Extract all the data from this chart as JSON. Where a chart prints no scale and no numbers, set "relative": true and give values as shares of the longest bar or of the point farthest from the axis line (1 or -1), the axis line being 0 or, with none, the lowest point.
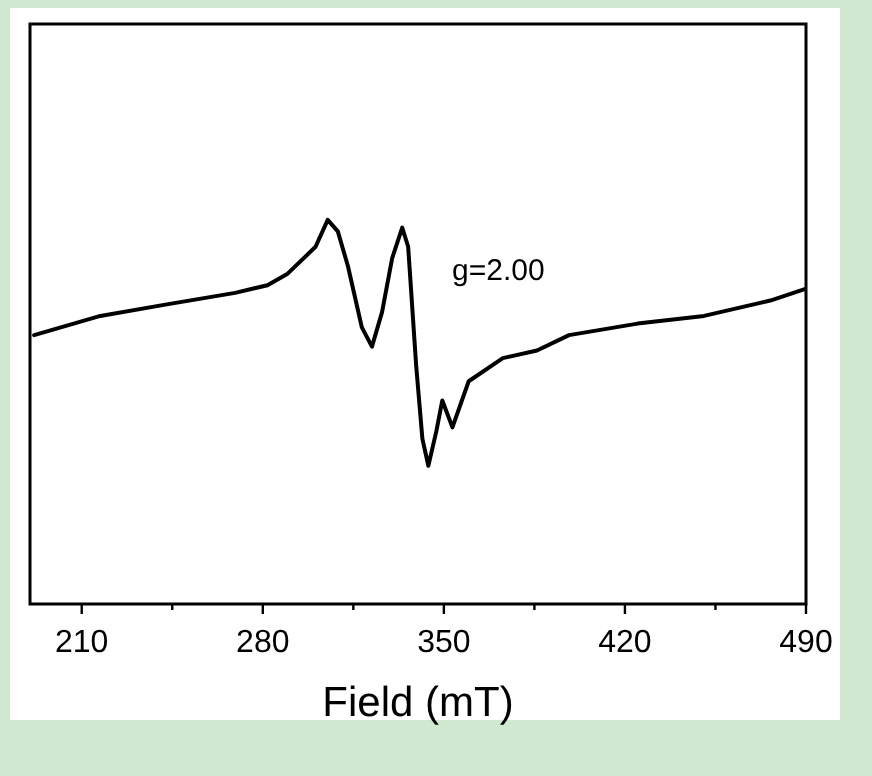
{
  "chart_data": {
    "type": "line",
    "xlabel": "Field (mT)",
    "relative": true,
    "tick_labels": "x",
    "grid": false,
    "marker": "none",
    "line_style": "solid",
    "xlim": [
      190,
      490
    ],
    "xticks": [
      210,
      {
        "value": 245,
        "label": null
      },
      280,
      {
        "value": 315,
        "label": null
      },
      350,
      {
        "value": 385,
        "label": null
      },
      420,
      {
        "value": 455,
        "label": null
      },
      490
    ],
    "annotations": [
      "g=2.00"
    ],
    "series": [
      {
        "color": "#000000",
        "x": [
          191.6,
          217.2,
          242.9,
          269.3,
          281.8,
          289.6,
          300.4,
          305.1,
          309.0,
          312.9,
          318.3,
          322.2,
          326.1,
          330.0,
          333.9,
          336.2,
          339.3,
          341.7,
          344.0,
          347.1,
          349.4,
          353.3,
          359.6,
          372.8,
          386.0,
          398.4,
          424.9,
          450.6,
          476.2,
          489.5
        ],
        "values": [
          0.7,
          0.75,
          0.78,
          0.81,
          0.83,
          0.86,
          0.93,
          1.0,
          0.97,
          0.88,
          0.72,
          0.67,
          0.76,
          0.9,
          0.98,
          0.93,
          0.62,
          0.43,
          0.36,
          0.45,
          0.53,
          0.46,
          0.58,
          0.64,
          0.66,
          0.7,
          0.73,
          0.75,
          0.79,
          0.82
        ]
      }
    ]
  }
}
